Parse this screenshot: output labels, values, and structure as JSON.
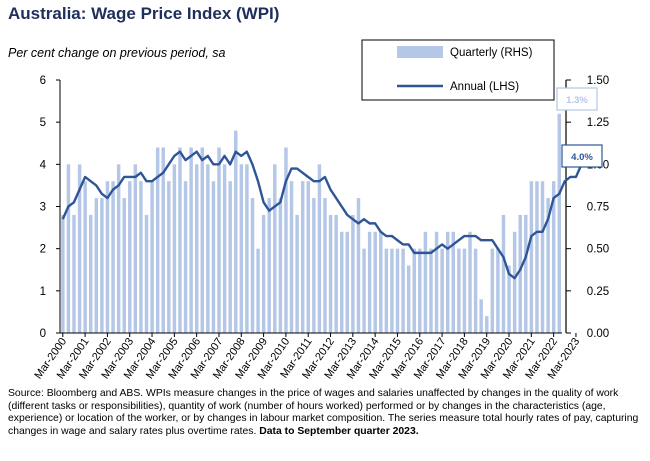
{
  "header": {
    "title": "Australia: Wage Price Index (WPI)",
    "subtitle": "Per cent change on previous period, sa"
  },
  "source": {
    "text": "Source: Bloomberg and ABS.  WPIs measure changes in the price of wages and salaries unaffected by changes in the quality of work (different tasks or responsibilities), quantity of work (number of hours worked) performed or by changes in the characteristics (age, experience) or location of the worker, or by changes in labour market composition.  The series measure total hourly rates of pay, capturing changes in wage and salary rates plus overtime rates.",
    "bold": "Data to September quarter 2023."
  },
  "colors": {
    "bar": "#b4c7e7",
    "line": "#2f5597",
    "title": "#1f2f5c"
  },
  "chart_data": {
    "type": "bar+line",
    "title": "Australia: Wage Price Index (WPI)",
    "left_axis": {
      "label": "Annual (LHS)",
      "ylim": [
        0,
        6
      ],
      "ticks": [
        "0",
        "1",
        "2",
        "3",
        "4",
        "5",
        "6"
      ]
    },
    "right_axis": {
      "label": "Quarterly (RHS)",
      "ylim": [
        0,
        1.5
      ],
      "ticks": [
        "0.00",
        "0.25",
        "0.50",
        "0.75",
        "1.00",
        "1.25",
        "1.50"
      ]
    },
    "x_tick_labels": [
      "Mar-2000",
      "Mar-2001",
      "Mar-2002",
      "Mar-2003",
      "Mar-2004",
      "Mar-2005",
      "Mar-2006",
      "Mar-2007",
      "Mar-2008",
      "Mar-2009",
      "Mar-2010",
      "Mar-2011",
      "Mar-2012",
      "Mar-2013",
      "Mar-2014",
      "Mar-2015",
      "Mar-2016",
      "Mar-2017",
      "Mar-2018",
      "Mar-2019",
      "Mar-2020",
      "Mar-2021",
      "Mar-2022",
      "Mar-2023"
    ],
    "legend": [
      {
        "name": "Quarterly (RHS)",
        "style": "bar"
      },
      {
        "name": "Annual (LHS)",
        "style": "line"
      }
    ],
    "callouts": {
      "quarterly": "1.3%",
      "annual": "4.0%"
    },
    "series": [
      {
        "name": "Quarterly (RHS)",
        "axis": "right",
        "values": [
          0.7,
          1.0,
          0.7,
          1.0,
          0.9,
          0.7,
          0.8,
          0.8,
          0.9,
          0.9,
          1.0,
          0.8,
          0.9,
          1.0,
          0.9,
          0.7,
          0.9,
          1.1,
          1.1,
          0.9,
          1.0,
          1.1,
          0.9,
          1.1,
          1.0,
          1.1,
          1.0,
          0.9,
          1.1,
          1.0,
          0.9,
          1.2,
          1.0,
          1.0,
          0.8,
          0.5,
          0.7,
          0.8,
          1.0,
          0.8,
          1.1,
          0.9,
          0.7,
          0.9,
          0.9,
          0.8,
          1.0,
          0.8,
          0.7,
          0.7,
          0.6,
          0.6,
          0.7,
          0.8,
          0.5,
          0.6,
          0.6,
          0.6,
          0.5,
          0.5,
          0.5,
          0.5,
          0.4,
          0.5,
          0.5,
          0.6,
          0.5,
          0.6,
          0.5,
          0.6,
          0.6,
          0.5,
          0.5,
          0.6,
          0.5,
          0.2,
          0.1,
          0.5,
          0.5,
          0.7,
          0.4,
          0.6,
          0.7,
          0.7,
          0.9,
          0.9,
          0.9,
          0.8,
          0.9,
          1.3
        ]
      },
      {
        "name": "Annual (LHS)",
        "axis": "left",
        "values": [
          2.7,
          3.0,
          3.1,
          3.4,
          3.7,
          3.6,
          3.5,
          3.3,
          3.2,
          3.4,
          3.5,
          3.7,
          3.7,
          3.7,
          3.8,
          3.6,
          3.6,
          3.7,
          3.8,
          4.0,
          4.2,
          4.3,
          4.1,
          4.2,
          4.3,
          4.1,
          4.2,
          4.0,
          4.0,
          4.2,
          4.0,
          4.3,
          4.2,
          4.3,
          4.0,
          3.6,
          3.1,
          2.9,
          3.0,
          3.1,
          3.6,
          3.9,
          3.9,
          3.8,
          3.7,
          3.6,
          3.6,
          3.7,
          3.4,
          3.2,
          3.0,
          2.8,
          2.7,
          2.6,
          2.7,
          2.6,
          2.6,
          2.4,
          2.3,
          2.3,
          2.2,
          2.1,
          2.1,
          1.9,
          1.9,
          1.9,
          1.9,
          2.0,
          2.1,
          2.0,
          2.1,
          2.2,
          2.3,
          2.3,
          2.3,
          2.2,
          2.2,
          2.2,
          2.0,
          1.8,
          1.4,
          1.3,
          1.5,
          1.8,
          2.3,
          2.4,
          2.4,
          2.7,
          3.2,
          3.3,
          3.6,
          3.7,
          3.7,
          4.0
        ]
      }
    ]
  }
}
